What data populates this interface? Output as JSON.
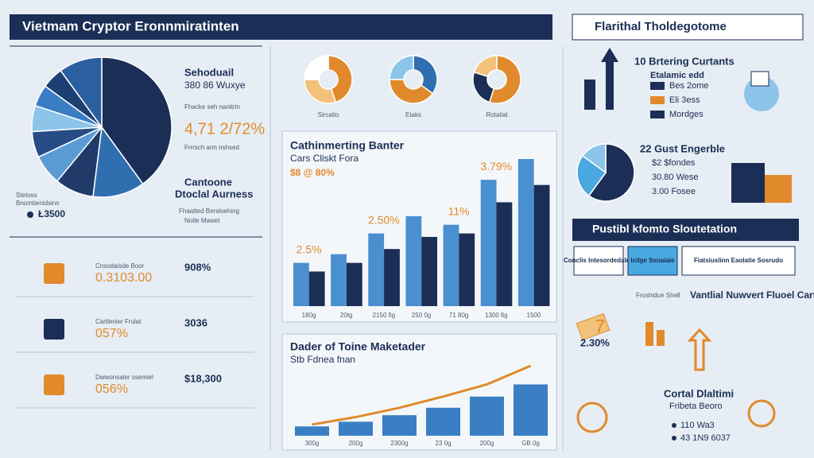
{
  "header": {
    "title": "Vietmam Cryptor Eronnmiratinten",
    "right_title": "Flarithal Tholdegotome"
  },
  "pie_panel": {
    "title": "Sehoduail",
    "subtitle": "380 86 Wuxye",
    "note": "Fhacke seh nanitrin",
    "value": "4,71 2/72%",
    "note2": "Frrrsch ann nshsed",
    "caption_top": "Cantoone",
    "caption_bottom": "Dtoclal Aurness",
    "caption_note": "Fhaatted Bersloehing",
    "caption_note2": "Notle Mawet",
    "legend": "Stetoss",
    "legend_note": "Bnomtienidsinn",
    "amount": "Ł3500",
    "slices": [
      40,
      12,
      9,
      7,
      6,
      6,
      5,
      5,
      10
    ],
    "colors": [
      "#1b2e55",
      "#2f6fb0",
      "#203a6a",
      "#5a9bd4",
      "#274b85",
      "#8cc4ea",
      "#3b7dc4",
      "#1d3f73",
      "#2a5fa0"
    ]
  },
  "donuts": [
    {
      "label": "Sircatio",
      "slices": [
        45,
        30,
        25
      ],
      "colors": [
        "#e08a2c",
        "#f3c27a",
        "#ffffff"
      ]
    },
    {
      "label": "Etaks",
      "slices": [
        35,
        40,
        25
      ],
      "colors": [
        "#2f6fb0",
        "#e08a2c",
        "#8cc4ea"
      ]
    },
    {
      "label": "Rotatial",
      "slices": [
        55,
        25,
        20
      ],
      "colors": [
        "#e08a2c",
        "#1b2e55",
        "#f3c27a"
      ]
    }
  ],
  "stats": [
    {
      "value": "0.3103.00",
      "percent": "908%",
      "label": "Cnsodaisde Boor"
    },
    {
      "value": "057%",
      "percent": "3036",
      "label": "Cartlenier Frulat"
    },
    {
      "value": "056%",
      "percent": "$18,300",
      "label": "Dwwonsaler ssemiel"
    }
  ],
  "bar_chart": {
    "type": "bar",
    "title": "Cathinmerting Banter",
    "subtitle": "Cars Cliskt Fora",
    "note": "$8 @ 80%",
    "categories": [
      "180g",
      "20tg",
      "2150 fig",
      "250 0g",
      "71 80g",
      "1300 fig",
      "1500"
    ],
    "series": [
      {
        "color": "#4a8fd0",
        "values": [
          25,
          30,
          42,
          52,
          47,
          73,
          85
        ]
      },
      {
        "color": "#1b2e55",
        "values": [
          20,
          25,
          33,
          40,
          42,
          60,
          70
        ]
      }
    ],
    "annotations": [
      "2.5%",
      "2.50%",
      "11%",
      "3.79%"
    ]
  },
  "line_chart": {
    "type": "bar",
    "title": "Dader of Toine Maketader",
    "subtitle": "Stb Fdnea fnan",
    "categories": [
      "300g",
      "200g",
      "2300g",
      "23 0g",
      "200g",
      "GB 0g"
    ],
    "bar_color": "#3a7fc4",
    "line_color": "#e08a2c",
    "values": [
      10,
      15,
      22,
      30,
      42,
      55
    ],
    "line_values": [
      12,
      20,
      30,
      42,
      55,
      75
    ]
  },
  "right": {
    "top_title": "10 Brtering Curtants",
    "top_sub": "Etalamic edd",
    "top_rows": [
      "Bes 2ome",
      "Eli 3ess",
      "Mordges"
    ],
    "donut_title": "22 Gust Engerble",
    "donut_rows": [
      "$2 $fondes",
      "30.80 Wese",
      "3.00 Fosee"
    ],
    "donut": {
      "slices": [
        60,
        25,
        15
      ],
      "colors": [
        "#1b2e55",
        "#4aa8e0",
        "#8cc4ea"
      ]
    },
    "section_title": "Pustibl kfomto Sloutetation",
    "boxes": [
      "Conclis Intesordedalne",
      "Icilge Ssnaiaie",
      "Fiatsiuslinn Eaolatie Sosrudo"
    ],
    "big_number": "7",
    "big_percent": "2.30%",
    "mid_label": "Froshidue Shell",
    "mid_title": "Vantlial Nuwvert Fluoel Cartgmeo",
    "bottom_title": "Cortal Dlaltimi",
    "bottom_sub": "Fribeta Beoro",
    "bottom_rows": [
      "110 Wa3",
      "43 1N9 6037"
    ]
  }
}
